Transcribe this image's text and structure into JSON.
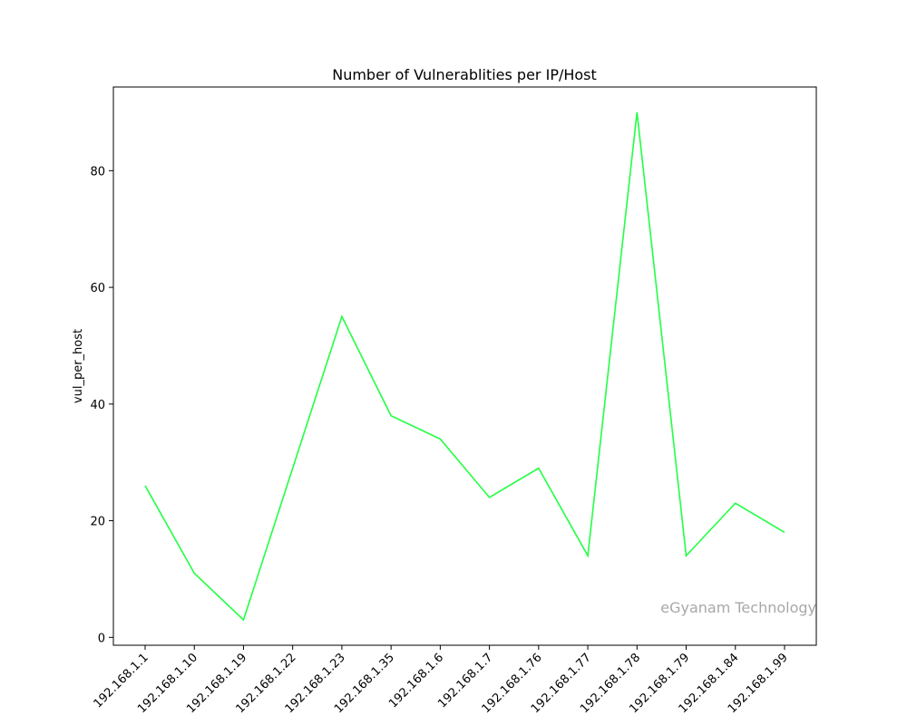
{
  "chart_data": {
    "type": "line",
    "title": "Number of Vulnerablities per IP/Host",
    "xlabel": "",
    "ylabel": "vul_per_host",
    "categories": [
      "192.168.1.1",
      "192.168.1.10",
      "192.168.1.19",
      "192.168.1.22",
      "192.168.1.23",
      "192.168.1.35",
      "192.168.1.6",
      "192.168.1.7",
      "192.168.1.76",
      "192.168.1.77",
      "192.168.1.78",
      "192.168.1.79",
      "192.168.1.84",
      "192.168.1.99"
    ],
    "series": [
      {
        "values": [
          26,
          11,
          3,
          29,
          55,
          38,
          34,
          24,
          29,
          14,
          90,
          14,
          23,
          18
        ],
        "color": "#22ff44"
      }
    ],
    "ylim": [
      -1.35,
      94.35
    ],
    "yticks": [
      0,
      20,
      40,
      60,
      80
    ],
    "grid": false,
    "annotation": "eGyanam Technology"
  }
}
